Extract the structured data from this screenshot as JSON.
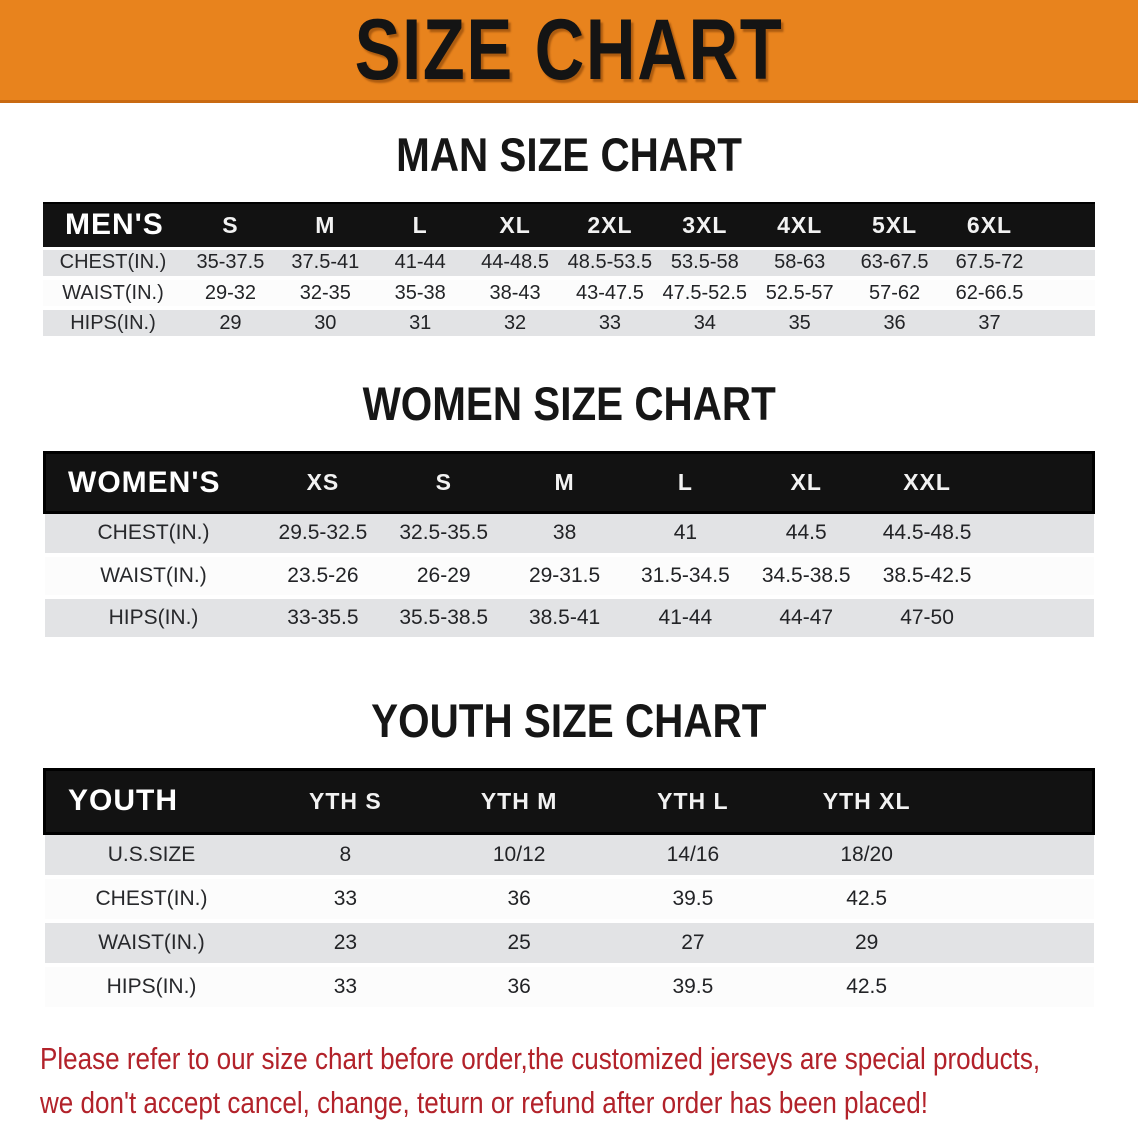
{
  "banner": {
    "title": "SIZE CHART",
    "bg_color": "#E8831D",
    "text_color": "#141414"
  },
  "colors": {
    "table_header_bg": "#121212",
    "row_gray": "#E2E3E5",
    "row_white": "#FCFCFC",
    "footer_red": "#B2222A"
  },
  "sections": [
    {
      "id": "men",
      "title": "MAN SIZE CHART",
      "header_label": "MEN'S",
      "columns": [
        "S",
        "M",
        "L",
        "XL",
        "2XL",
        "3XL",
        "4XL",
        "5XL",
        "6XL"
      ],
      "rows": [
        {
          "label": "CHEST(IN.)",
          "values": [
            "35-37.5",
            "37.5-41",
            "41-44",
            "44-48.5",
            "48.5-53.5",
            "53.5-58",
            "58-63",
            "63-67.5",
            "67.5-72"
          ]
        },
        {
          "label": "WAIST(IN.)",
          "values": [
            "29-32",
            "32-35",
            "35-38",
            "38-43",
            "43-47.5",
            "47.5-52.5",
            "52.5-57",
            "57-62",
            "62-66.5"
          ]
        },
        {
          "label": "HIPS(IN.)",
          "values": [
            "29",
            "30",
            "31",
            "32",
            "33",
            "34",
            "35",
            "36",
            "37"
          ]
        }
      ]
    },
    {
      "id": "women",
      "title": "WOMEN SIZE CHART",
      "header_label": "WOMEN'S",
      "columns": [
        "XS",
        "S",
        "M",
        "L",
        "XL",
        "XXL"
      ],
      "rows": [
        {
          "label": "CHEST(IN.)",
          "values": [
            "29.5-32.5",
            "32.5-35.5",
            "38",
            "41",
            "44.5",
            "44.5-48.5"
          ]
        },
        {
          "label": "WAIST(IN.)",
          "values": [
            "23.5-26",
            "26-29",
            "29-31.5",
            "31.5-34.5",
            "34.5-38.5",
            "38.5-42.5"
          ]
        },
        {
          "label": "HIPS(IN.)",
          "values": [
            "33-35.5",
            "35.5-38.5",
            "38.5-41",
            "41-44",
            "44-47",
            "47-50"
          ]
        }
      ]
    },
    {
      "id": "youth",
      "title": "YOUTH SIZE CHART",
      "header_label": "YOUTH",
      "columns": [
        "YTH S",
        "YTH M",
        "YTH L",
        "YTH XL"
      ],
      "rows": [
        {
          "label": "U.S.SIZE",
          "values": [
            "8",
            "10/12",
            "14/16",
            "18/20"
          ]
        },
        {
          "label": "CHEST(IN.)",
          "values": [
            "33",
            "36",
            "39.5",
            "42.5"
          ]
        },
        {
          "label": "WAIST(IN.)",
          "values": [
            "23",
            "25",
            "27",
            "29"
          ]
        },
        {
          "label": "HIPS(IN.)",
          "values": [
            "33",
            "36",
            "39.5",
            "42.5"
          ]
        }
      ]
    }
  ],
  "footer": {
    "line1": "Please refer to our size chart before order,the customized jerseys are special products,",
    "line2": "we don't accept cancel, change, teturn or refund after order has been placed!",
    "color": "#B2222A"
  }
}
